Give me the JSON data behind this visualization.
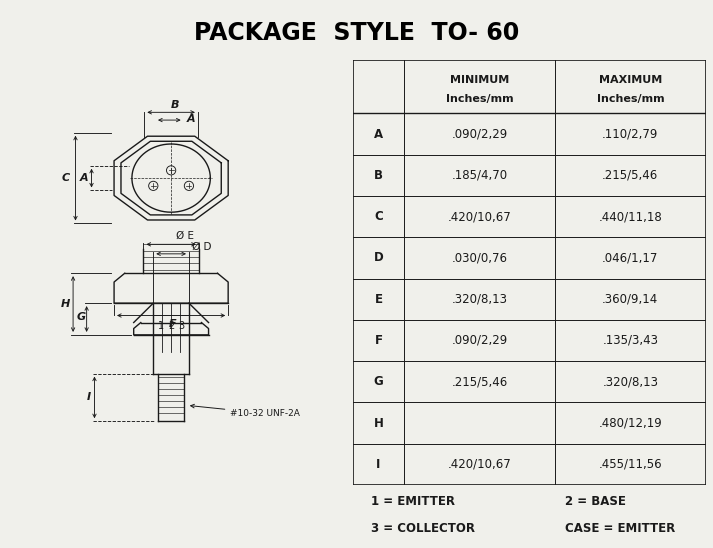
{
  "title": "PACKAGE  STYLE  TO- 60",
  "table_headers_line1": [
    "",
    "MINIMUM",
    "MAXIMUM"
  ],
  "table_headers_line2": [
    "",
    "Inches/mm",
    "Inches/mm"
  ],
  "table_rows": [
    [
      "A",
      ".090/2,29",
      ".110/2,79"
    ],
    [
      "B",
      ".185/4,70",
      ".215/5,46"
    ],
    [
      "C",
      ".420/10,67",
      ".440/11,18"
    ],
    [
      "D",
      ".030/0,76",
      ".046/1,17"
    ],
    [
      "E",
      ".320/8,13",
      ".360/9,14"
    ],
    [
      "F",
      ".090/2,29",
      ".135/3,43"
    ],
    [
      "G",
      ".215/5,46",
      ".320/8,13"
    ],
    [
      "H",
      "",
      ".480/12,19"
    ],
    [
      "I",
      ".420/10,67",
      ".455/11,56"
    ]
  ],
  "footnotes": [
    [
      "1 = EMITTER",
      "2 = BASE"
    ],
    [
      "3 = COLLECTOR",
      "CASE = EMITTER"
    ]
  ],
  "bg_color": "#f0f0eb",
  "line_color": "#1a1a1a",
  "title_fontsize": 17,
  "table_fontsize": 8.5,
  "footnote_fontsize": 8.5
}
